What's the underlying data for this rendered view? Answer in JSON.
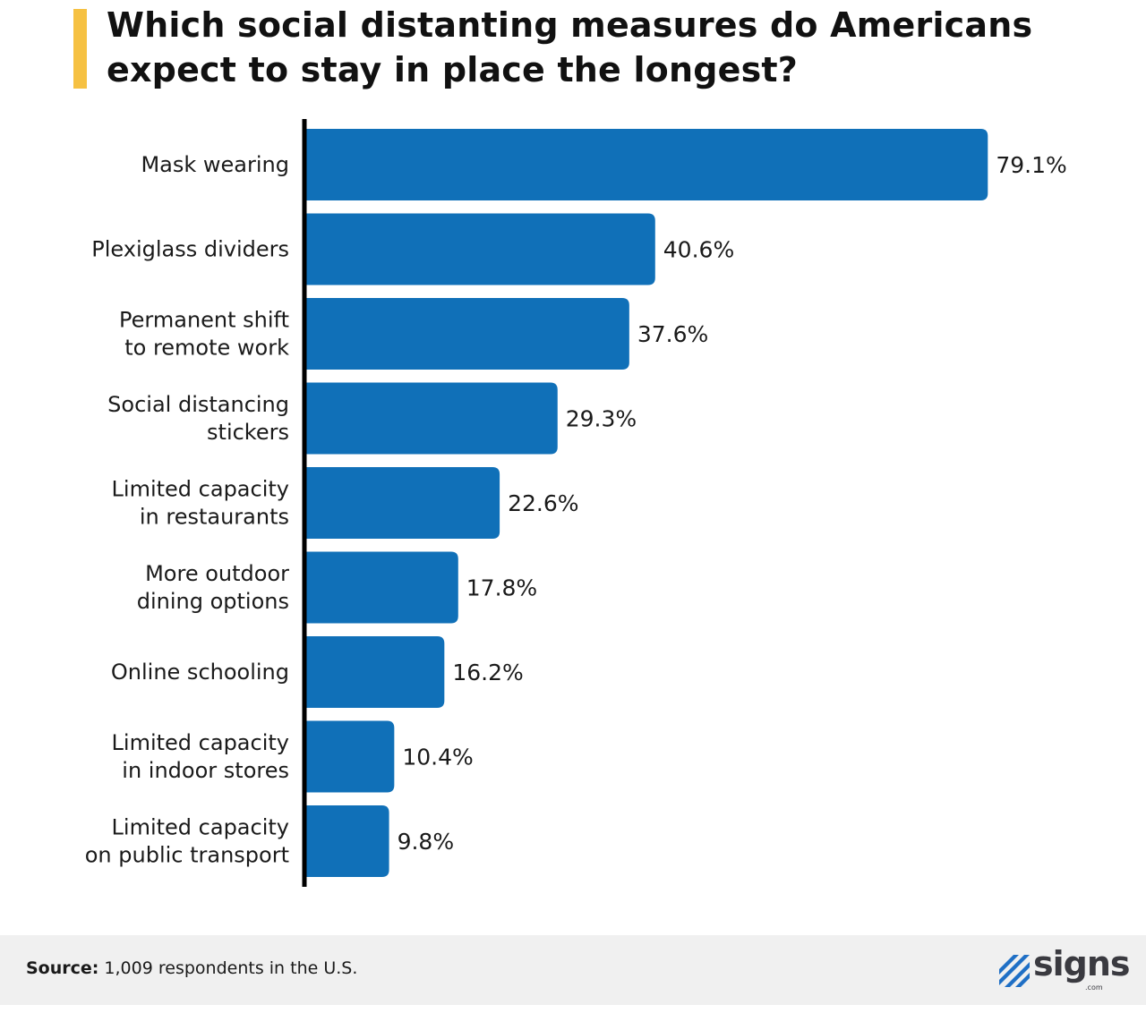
{
  "title": {
    "line1": "Which social distanting measures do Americans",
    "line2": "expect to stay in place the longest?"
  },
  "chart_data": {
    "type": "bar",
    "orientation": "horizontal",
    "title": "Which social distanting measures do Americans expect to stay in place the longest?",
    "xlabel": "",
    "ylabel": "",
    "grid": false,
    "categories": [
      [
        "Mask wearing"
      ],
      [
        "Plexiglass dividers"
      ],
      [
        "Permanent shift",
        "to remote work"
      ],
      [
        "Social distancing",
        "stickers"
      ],
      [
        "Limited capacity",
        "in restaurants"
      ],
      [
        "More outdoor",
        "dining options"
      ],
      [
        "Online schooling"
      ],
      [
        "Limited capacity",
        "in indoor stores"
      ],
      [
        "Limited capacity",
        "on public transport"
      ]
    ],
    "values": [
      79.1,
      40.6,
      37.6,
      29.3,
      22.6,
      17.8,
      16.2,
      10.4,
      9.8
    ],
    "value_labels": [
      "79.1%",
      "40.6%",
      "37.6%",
      "29.3%",
      "22.6%",
      "17.8%",
      "16.2%",
      "10.4%",
      "9.8%"
    ],
    "unit": "%",
    "bar_color": "#1070b8",
    "axis_color": "#000000"
  },
  "footer": {
    "source_label": "Source:",
    "source_text": " 1,009 respondents in the U.S.",
    "logo_text": "signs",
    "logo_sub": ".com",
    "logo_mark_color": "#1f6fc5"
  },
  "colors": {
    "accent": "#f6c142",
    "footer_bg": "#f0f0f0"
  }
}
